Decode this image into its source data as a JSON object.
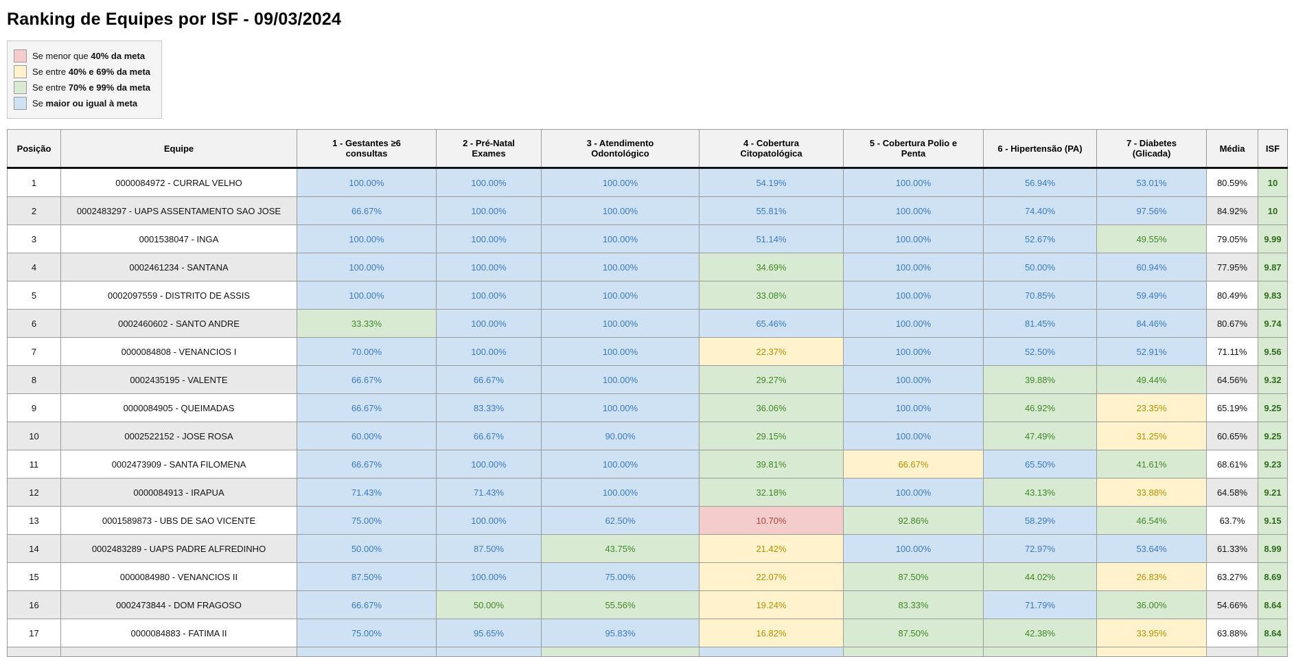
{
  "page": {
    "title": "Ranking de Equipes por ISF - 09/03/2024"
  },
  "colors": {
    "below_40": "#f4cccc",
    "between_40_69": "#fff2cc",
    "between_70_99": "#d9ead3",
    "meets_goal": "#cfe2f3",
    "text_blue": "#3a79c2",
    "text_green": "#3f8824",
    "text_yellow": "#b39000",
    "text_red": "#a8453a",
    "isf_text": "#2e6b1c"
  },
  "legend": {
    "items": [
      {
        "prefix": "Se menor que ",
        "bold": "40% da meta",
        "swatch": "#f4cccc"
      },
      {
        "prefix": "Se entre ",
        "bold": "40% e 69% da meta",
        "swatch": "#fff2cc"
      },
      {
        "prefix": "Se entre ",
        "bold": "70% e 99% da meta",
        "swatch": "#d9ead3"
      },
      {
        "prefix": "Se ",
        "bold": "maior ou igual à meta",
        "swatch": "#cfe2f3"
      }
    ]
  },
  "table": {
    "columns": {
      "posicao": "Posição",
      "equipe": "Equipe",
      "c1": "1 - Gestantes ≥6\nconsultas",
      "c2": "2 - Pré-Natal\nExames",
      "c3": "3 - Atendimento\nOdontológico",
      "c4": "4 - Cobertura\nCitopatológica",
      "c5": "5 - Cobertura Polio e\nPenta",
      "c6": "6 - Hipertensão (PA)",
      "c7": "7 - Diabetes\n(Glicada)",
      "media": "Média",
      "isf": "ISF"
    },
    "rows": [
      {
        "pos": "1",
        "equipe": "0000084972 - CURRAL VELHO",
        "cells": [
          {
            "v": "100.00%",
            "c": "b"
          },
          {
            "v": "100.00%",
            "c": "b"
          },
          {
            "v": "100.00%",
            "c": "b"
          },
          {
            "v": "54.19%",
            "c": "b"
          },
          {
            "v": "100.00%",
            "c": "b"
          },
          {
            "v": "56.94%",
            "c": "b"
          },
          {
            "v": "53.01%",
            "c": "b"
          }
        ],
        "media": "80.59%",
        "isf": "10"
      },
      {
        "pos": "2",
        "equipe": "0002483297 - UAPS ASSENTAMENTO SAO JOSE",
        "cells": [
          {
            "v": "66.67%",
            "c": "b"
          },
          {
            "v": "100.00%",
            "c": "b"
          },
          {
            "v": "100.00%",
            "c": "b"
          },
          {
            "v": "55.81%",
            "c": "b"
          },
          {
            "v": "100.00%",
            "c": "b"
          },
          {
            "v": "74.40%",
            "c": "b"
          },
          {
            "v": "97.56%",
            "c": "b"
          }
        ],
        "media": "84.92%",
        "isf": "10"
      },
      {
        "pos": "3",
        "equipe": "0001538047 - INGA",
        "cells": [
          {
            "v": "100.00%",
            "c": "b"
          },
          {
            "v": "100.00%",
            "c": "b"
          },
          {
            "v": "100.00%",
            "c": "b"
          },
          {
            "v": "51.14%",
            "c": "b"
          },
          {
            "v": "100.00%",
            "c": "b"
          },
          {
            "v": "52.67%",
            "c": "b"
          },
          {
            "v": "49.55%",
            "c": "g"
          }
        ],
        "media": "79.05%",
        "isf": "9.99"
      },
      {
        "pos": "4",
        "equipe": "0002461234 - SANTANA",
        "cells": [
          {
            "v": "100.00%",
            "c": "b"
          },
          {
            "v": "100.00%",
            "c": "b"
          },
          {
            "v": "100.00%",
            "c": "b"
          },
          {
            "v": "34.69%",
            "c": "g"
          },
          {
            "v": "100.00%",
            "c": "b"
          },
          {
            "v": "50.00%",
            "c": "b"
          },
          {
            "v": "60.94%",
            "c": "b"
          }
        ],
        "media": "77.95%",
        "isf": "9.87"
      },
      {
        "pos": "5",
        "equipe": "0002097559 - DISTRITO DE ASSIS",
        "cells": [
          {
            "v": "100.00%",
            "c": "b"
          },
          {
            "v": "100.00%",
            "c": "b"
          },
          {
            "v": "100.00%",
            "c": "b"
          },
          {
            "v": "33.08%",
            "c": "g"
          },
          {
            "v": "100.00%",
            "c": "b"
          },
          {
            "v": "70.85%",
            "c": "b"
          },
          {
            "v": "59.49%",
            "c": "b"
          }
        ],
        "media": "80.49%",
        "isf": "9.83"
      },
      {
        "pos": "6",
        "equipe": "0002460602 - SANTO ANDRE",
        "cells": [
          {
            "v": "33.33%",
            "c": "g"
          },
          {
            "v": "100.00%",
            "c": "b"
          },
          {
            "v": "100.00%",
            "c": "b"
          },
          {
            "v": "65.46%",
            "c": "b"
          },
          {
            "v": "100.00%",
            "c": "b"
          },
          {
            "v": "81.45%",
            "c": "b"
          },
          {
            "v": "84.46%",
            "c": "b"
          }
        ],
        "media": "80.67%",
        "isf": "9.74"
      },
      {
        "pos": "7",
        "equipe": "0000084808 - VENANCIOS I",
        "cells": [
          {
            "v": "70.00%",
            "c": "b"
          },
          {
            "v": "100.00%",
            "c": "b"
          },
          {
            "v": "100.00%",
            "c": "b"
          },
          {
            "v": "22.37%",
            "c": "y"
          },
          {
            "v": "100.00%",
            "c": "b"
          },
          {
            "v": "52.50%",
            "c": "b"
          },
          {
            "v": "52.91%",
            "c": "b"
          }
        ],
        "media": "71.11%",
        "isf": "9.56"
      },
      {
        "pos": "8",
        "equipe": "0002435195 - VALENTE",
        "cells": [
          {
            "v": "66.67%",
            "c": "b"
          },
          {
            "v": "66.67%",
            "c": "b"
          },
          {
            "v": "100.00%",
            "c": "b"
          },
          {
            "v": "29.27%",
            "c": "g"
          },
          {
            "v": "100.00%",
            "c": "b"
          },
          {
            "v": "39.88%",
            "c": "g"
          },
          {
            "v": "49.44%",
            "c": "g"
          }
        ],
        "media": "64.56%",
        "isf": "9.32"
      },
      {
        "pos": "9",
        "equipe": "0000084905 - QUEIMADAS",
        "cells": [
          {
            "v": "66.67%",
            "c": "b"
          },
          {
            "v": "83.33%",
            "c": "b"
          },
          {
            "v": "100.00%",
            "c": "b"
          },
          {
            "v": "36.06%",
            "c": "g"
          },
          {
            "v": "100.00%",
            "c": "b"
          },
          {
            "v": "46.92%",
            "c": "g"
          },
          {
            "v": "23.35%",
            "c": "y"
          }
        ],
        "media": "65.19%",
        "isf": "9.25"
      },
      {
        "pos": "10",
        "equipe": "0002522152 - JOSE ROSA",
        "cells": [
          {
            "v": "60.00%",
            "c": "b"
          },
          {
            "v": "66.67%",
            "c": "b"
          },
          {
            "v": "90.00%",
            "c": "b"
          },
          {
            "v": "29.15%",
            "c": "g"
          },
          {
            "v": "100.00%",
            "c": "b"
          },
          {
            "v": "47.49%",
            "c": "g"
          },
          {
            "v": "31.25%",
            "c": "y"
          }
        ],
        "media": "60.65%",
        "isf": "9.25"
      },
      {
        "pos": "11",
        "equipe": "0002473909 - SANTA FILOMENA",
        "cells": [
          {
            "v": "66.67%",
            "c": "b"
          },
          {
            "v": "100.00%",
            "c": "b"
          },
          {
            "v": "100.00%",
            "c": "b"
          },
          {
            "v": "39.81%",
            "c": "g"
          },
          {
            "v": "66.67%",
            "c": "y"
          },
          {
            "v": "65.50%",
            "c": "b"
          },
          {
            "v": "41.61%",
            "c": "g"
          }
        ],
        "media": "68.61%",
        "isf": "9.23"
      },
      {
        "pos": "12",
        "equipe": "0000084913 - IRAPUA",
        "cells": [
          {
            "v": "71.43%",
            "c": "b"
          },
          {
            "v": "71.43%",
            "c": "b"
          },
          {
            "v": "100.00%",
            "c": "b"
          },
          {
            "v": "32.18%",
            "c": "g"
          },
          {
            "v": "100.00%",
            "c": "b"
          },
          {
            "v": "43.13%",
            "c": "g"
          },
          {
            "v": "33.88%",
            "c": "y"
          }
        ],
        "media": "64.58%",
        "isf": "9.21"
      },
      {
        "pos": "13",
        "equipe": "0001589873 - UBS DE SAO VICENTE",
        "cells": [
          {
            "v": "75.00%",
            "c": "b"
          },
          {
            "v": "100.00%",
            "c": "b"
          },
          {
            "v": "62.50%",
            "c": "b"
          },
          {
            "v": "10.70%",
            "c": "r"
          },
          {
            "v": "92.86%",
            "c": "g"
          },
          {
            "v": "58.29%",
            "c": "b"
          },
          {
            "v": "46.54%",
            "c": "g"
          }
        ],
        "media": "63.7%",
        "isf": "9.15"
      },
      {
        "pos": "14",
        "equipe": "0002483289 - UAPS PADRE ALFREDINHO",
        "cells": [
          {
            "v": "50.00%",
            "c": "b"
          },
          {
            "v": "87.50%",
            "c": "b"
          },
          {
            "v": "43.75%",
            "c": "g"
          },
          {
            "v": "21.42%",
            "c": "y"
          },
          {
            "v": "100.00%",
            "c": "b"
          },
          {
            "v": "72.97%",
            "c": "b"
          },
          {
            "v": "53.64%",
            "c": "b"
          }
        ],
        "media": "61.33%",
        "isf": "8.99"
      },
      {
        "pos": "15",
        "equipe": "0000084980 - VENANCIOS II",
        "cells": [
          {
            "v": "87.50%",
            "c": "b"
          },
          {
            "v": "100.00%",
            "c": "b"
          },
          {
            "v": "75.00%",
            "c": "b"
          },
          {
            "v": "22.07%",
            "c": "y"
          },
          {
            "v": "87.50%",
            "c": "g"
          },
          {
            "v": "44.02%",
            "c": "g"
          },
          {
            "v": "26.83%",
            "c": "y"
          }
        ],
        "media": "63.27%",
        "isf": "8.69"
      },
      {
        "pos": "16",
        "equipe": "0002473844 - DOM FRAGOSO",
        "cells": [
          {
            "v": "66.67%",
            "c": "b"
          },
          {
            "v": "50.00%",
            "c": "g"
          },
          {
            "v": "55.56%",
            "c": "g"
          },
          {
            "v": "19.24%",
            "c": "y"
          },
          {
            "v": "83.33%",
            "c": "g"
          },
          {
            "v": "71.79%",
            "c": "b"
          },
          {
            "v": "36.00%",
            "c": "g"
          }
        ],
        "media": "54.66%",
        "isf": "8.64"
      },
      {
        "pos": "17",
        "equipe": "0000084883 - FATIMA II",
        "cells": [
          {
            "v": "75.00%",
            "c": "b"
          },
          {
            "v": "95.65%",
            "c": "b"
          },
          {
            "v": "95.83%",
            "c": "b"
          },
          {
            "v": "16.82%",
            "c": "y"
          },
          {
            "v": "87.50%",
            "c": "g"
          },
          {
            "v": "42.38%",
            "c": "g"
          },
          {
            "v": "33.95%",
            "c": "y"
          }
        ],
        "media": "63.88%",
        "isf": "8.64"
      },
      {
        "pos": "",
        "equipe": "",
        "cells": [
          {
            "v": "",
            "c": "b"
          },
          {
            "v": "",
            "c": "b"
          },
          {
            "v": "",
            "c": "g"
          },
          {
            "v": "",
            "c": "b"
          },
          {
            "v": "",
            "c": "g"
          },
          {
            "v": "",
            "c": "g"
          },
          {
            "v": "",
            "c": "y"
          }
        ],
        "media": "",
        "isf": "",
        "partial": true
      }
    ]
  }
}
